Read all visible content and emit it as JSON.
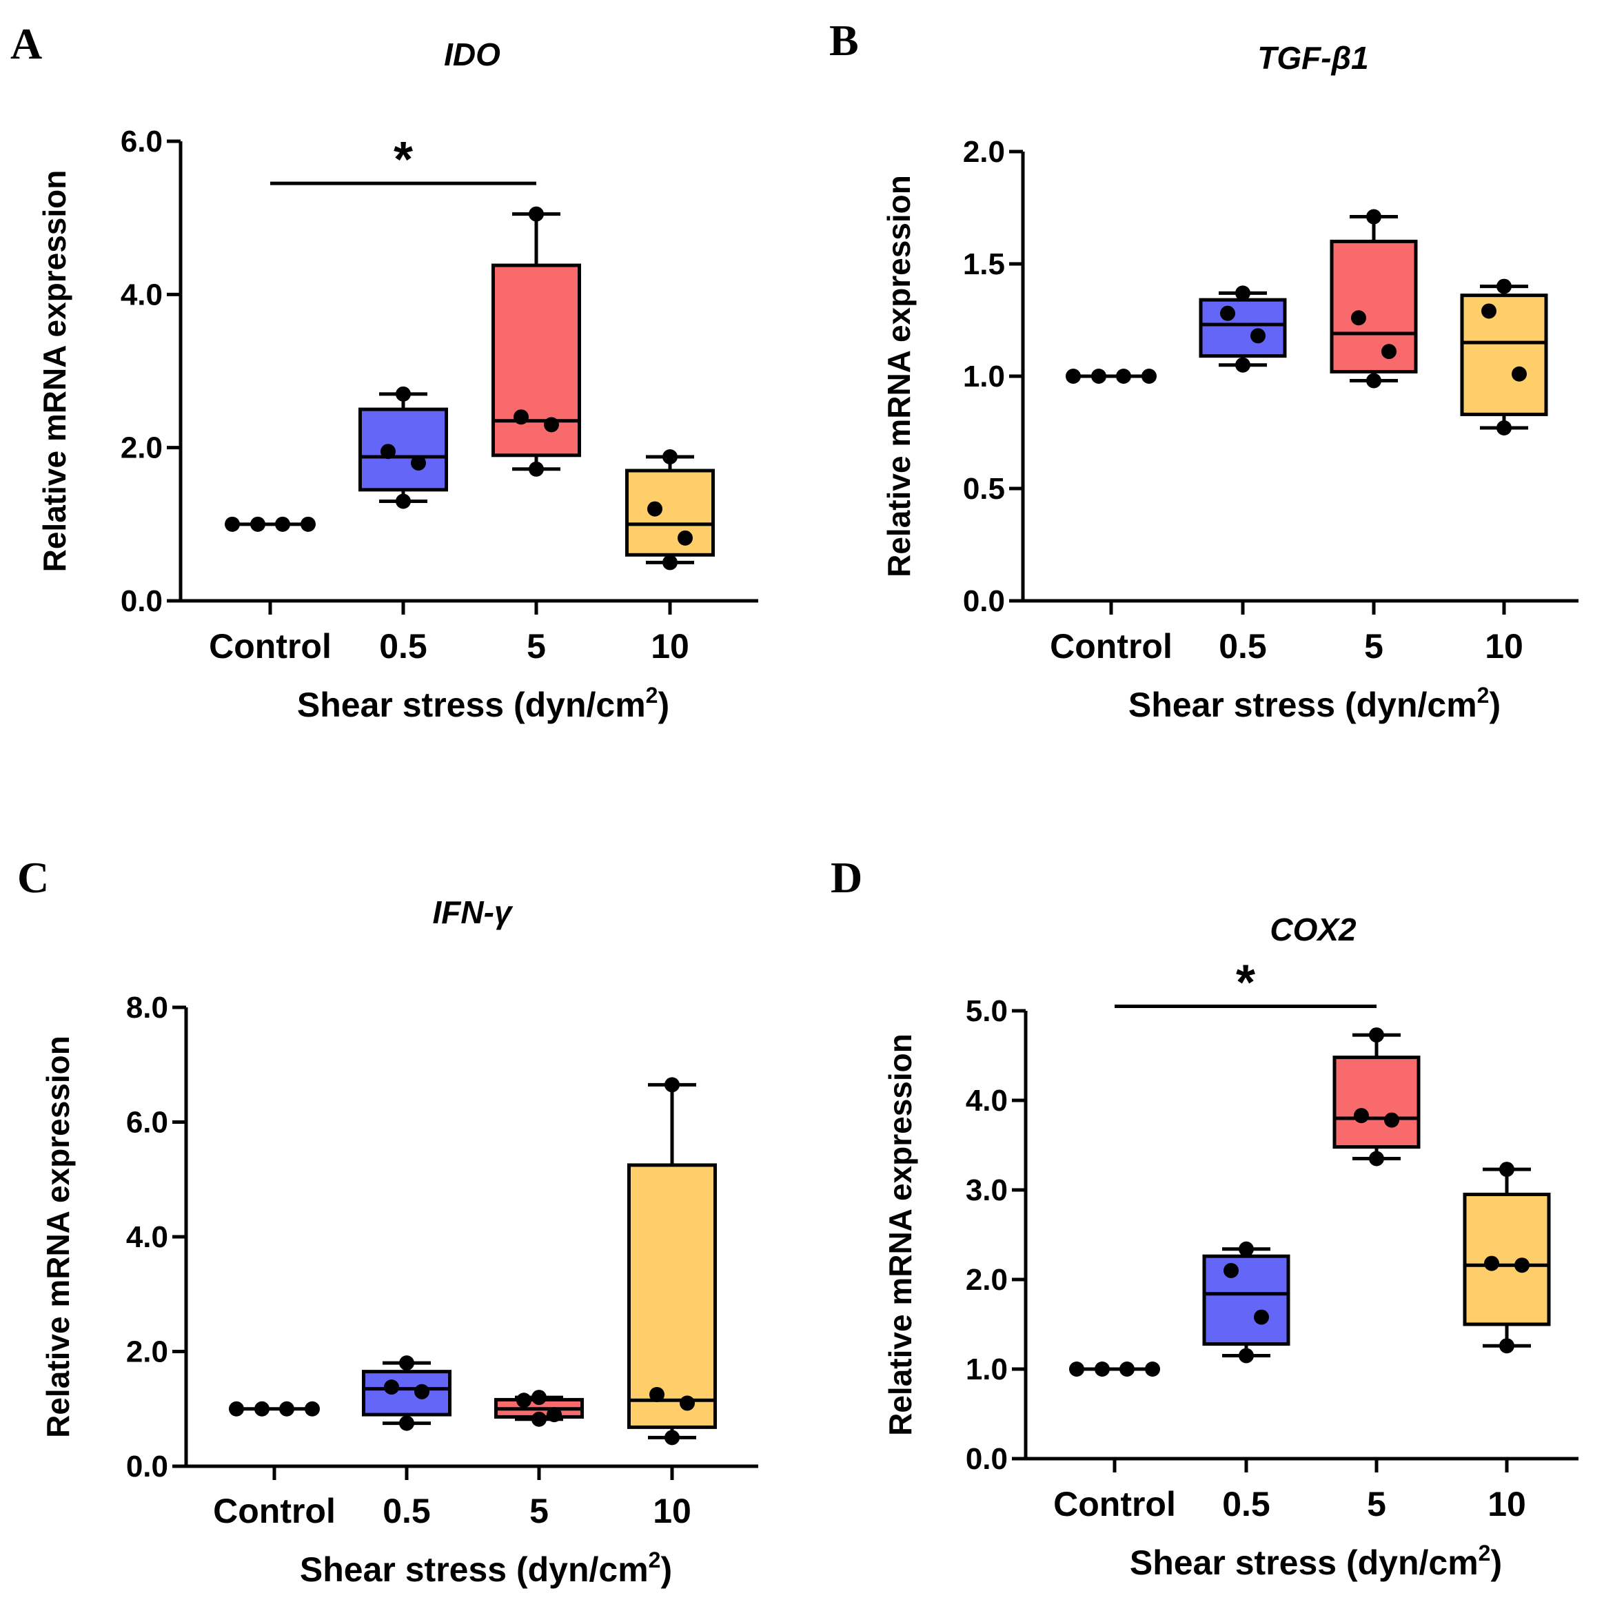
{
  "figure": {
    "x_axis_suffix": "2",
    "x_axis_close": ")"
  },
  "chart_data": [
    {
      "panel": "A",
      "type": "box",
      "title": "IDO",
      "xlabel": "Shear stress (dyn/cm",
      "ylabel": "Relative mRNA expression",
      "ylim": [
        0,
        6
      ],
      "yticks": [
        "0.0",
        "2.0",
        "4.0",
        "6.0"
      ],
      "categories": [
        "Control",
        "0.5",
        "5",
        "10"
      ],
      "colors": [
        "#ffffff",
        "#6466f7",
        "#f96a6c",
        "#fdce6a"
      ],
      "boxes": [
        {
          "min": 1.0,
          "q1": 1.0,
          "median": 1.0,
          "q3": 1.0,
          "max": 1.0,
          "points": [
            1.0,
            1.0,
            1.0,
            1.0
          ]
        },
        {
          "min": 1.3,
          "q1": 1.45,
          "median": 1.88,
          "q3": 2.5,
          "max": 2.7,
          "points": [
            2.7,
            1.95,
            1.8,
            1.3
          ]
        },
        {
          "min": 1.72,
          "q1": 1.9,
          "median": 2.35,
          "q3": 4.38,
          "max": 5.05,
          "points": [
            5.05,
            2.4,
            2.3,
            1.72
          ]
        },
        {
          "min": 0.5,
          "q1": 0.6,
          "median": 1.0,
          "q3": 1.7,
          "max": 1.88,
          "points": [
            1.88,
            1.2,
            0.82,
            0.5
          ]
        }
      ],
      "significance": [
        {
          "from": "Control",
          "to": "5",
          "label": "*",
          "y": 5.45
        }
      ]
    },
    {
      "panel": "B",
      "type": "box",
      "title": "TGF-β1",
      "xlabel": "Shear stress (dyn/cm",
      "ylabel": "Relative mRNA expression",
      "ylim": [
        0,
        2
      ],
      "yticks": [
        "0.0",
        "0.5",
        "1.0",
        "1.5",
        "2.0"
      ],
      "categories": [
        "Control",
        "0.5",
        "5",
        "10"
      ],
      "colors": [
        "#ffffff",
        "#6466f7",
        "#f96a6c",
        "#fdce6a"
      ],
      "boxes": [
        {
          "min": 1.0,
          "q1": 1.0,
          "median": 1.0,
          "q3": 1.0,
          "max": 1.0,
          "points": [
            1.0,
            1.0,
            1.0,
            1.0
          ]
        },
        {
          "min": 1.05,
          "q1": 1.09,
          "median": 1.23,
          "q3": 1.34,
          "max": 1.37,
          "points": [
            1.37,
            1.28,
            1.18,
            1.05
          ]
        },
        {
          "min": 0.98,
          "q1": 1.02,
          "median": 1.19,
          "q3": 1.6,
          "max": 1.71,
          "points": [
            1.71,
            1.26,
            1.11,
            0.98
          ]
        },
        {
          "min": 0.77,
          "q1": 0.83,
          "median": 1.15,
          "q3": 1.36,
          "max": 1.4,
          "points": [
            1.4,
            1.29,
            1.01,
            0.77
          ]
        }
      ],
      "significance": []
    },
    {
      "panel": "C",
      "type": "box",
      "title": "IFN-γ",
      "xlabel": "Shear stress (dyn/cm",
      "ylabel": "Relative mRNA expression",
      "ylim": [
        0,
        8
      ],
      "yticks": [
        "0.0",
        "2.0",
        "4.0",
        "6.0",
        "8.0"
      ],
      "categories": [
        "Control",
        "0.5",
        "5",
        "10"
      ],
      "colors": [
        "#ffffff",
        "#6466f7",
        "#f96a6c",
        "#fdce6a"
      ],
      "boxes": [
        {
          "min": 1.0,
          "q1": 1.0,
          "median": 1.0,
          "q3": 1.0,
          "max": 1.0,
          "points": [
            1.0,
            1.0,
            1.0,
            1.0
          ]
        },
        {
          "min": 0.75,
          "q1": 0.9,
          "median": 1.35,
          "q3": 1.65,
          "max": 1.8,
          "points": [
            1.8,
            1.38,
            1.3,
            0.75
          ]
        },
        {
          "min": 0.82,
          "q1": 0.86,
          "median": 1.0,
          "q3": 1.16,
          "max": 1.2,
          "points": [
            1.2,
            1.15,
            0.9,
            0.82
          ]
        },
        {
          "min": 0.5,
          "q1": 0.68,
          "median": 1.15,
          "q3": 5.25,
          "max": 6.65,
          "points": [
            6.65,
            1.25,
            1.1,
            0.5
          ]
        }
      ],
      "significance": []
    },
    {
      "panel": "D",
      "type": "box",
      "title": "COX2",
      "xlabel": "Shear stress (dyn/cm",
      "ylabel": "Relative mRNA expression",
      "ylim": [
        0,
        5
      ],
      "yticks": [
        "0.0",
        "1.0",
        "2.0",
        "3.0",
        "4.0",
        "5.0"
      ],
      "categories": [
        "Control",
        "0.5",
        "5",
        "10"
      ],
      "colors": [
        "#ffffff",
        "#6466f7",
        "#f96a6c",
        "#fdce6a"
      ],
      "boxes": [
        {
          "min": 1.0,
          "q1": 1.0,
          "median": 1.0,
          "q3": 1.0,
          "max": 1.0,
          "points": [
            1.0,
            1.0,
            1.0,
            1.0
          ]
        },
        {
          "min": 1.15,
          "q1": 1.28,
          "median": 1.84,
          "q3": 2.26,
          "max": 2.34,
          "points": [
            2.34,
            2.1,
            1.58,
            1.15
          ]
        },
        {
          "min": 3.35,
          "q1": 3.48,
          "median": 3.8,
          "q3": 4.48,
          "max": 4.73,
          "points": [
            4.73,
            3.83,
            3.78,
            3.35
          ]
        },
        {
          "min": 1.26,
          "q1": 1.5,
          "median": 2.16,
          "q3": 2.95,
          "max": 3.23,
          "points": [
            3.23,
            2.18,
            2.16,
            1.26
          ]
        }
      ],
      "significance": [
        {
          "from": "Control",
          "to": "5",
          "label": "*",
          "y": 5.05
        }
      ]
    }
  ]
}
